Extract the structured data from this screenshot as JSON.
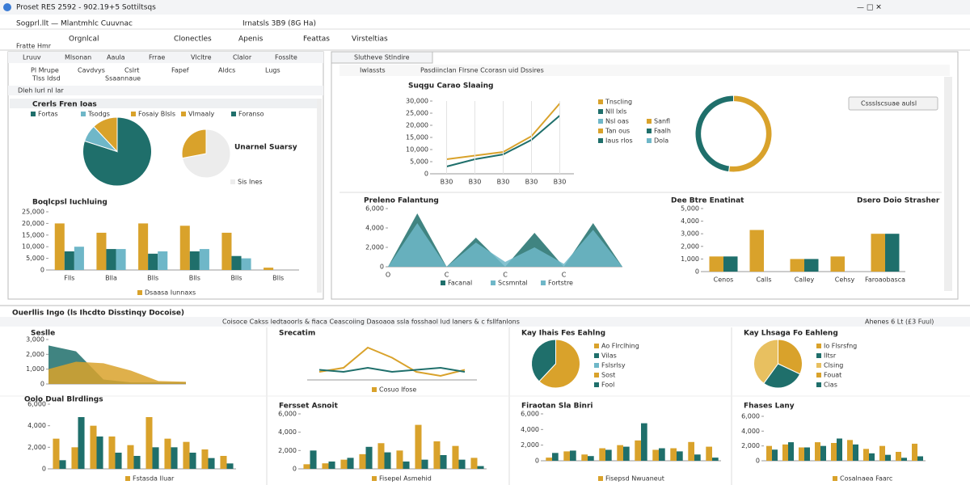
{
  "window": {
    "title": "Proset RES 2592 - 902.19+5 Sottiltsqs",
    "menu": [
      "Sogprl.llt — Mlantmhlc Cuuvnac",
      "Irnatsls 3B9 (8G Ha)"
    ]
  },
  "toolbar": {
    "small": "Fratte Hmr",
    "buttons": [
      "Orgnlcal",
      "Clonectles",
      "Apenis",
      "Feattas",
      "Virsteltias"
    ]
  },
  "left_panel": {
    "tabs": [
      "Lruuv",
      "Mlsonan",
      "Aaula",
      "Frrae",
      "Vlcltre",
      "Clalor",
      "Fosslte"
    ],
    "ribbon": [
      "Pl Mrupe",
      "Cavdvys",
      "Cslrt",
      "Fapef",
      "Aldcs",
      "Lugs"
    ],
    "ribbon_sub": [
      "Tlss Idsd",
      "Ssaannaue"
    ],
    "section": "Dleh Iurl nl lar"
  },
  "right_panel": {
    "tab": "Slutheve Stlndire",
    "bar": [
      "Iwlassts",
      "Pasdiinclan Flrsne Ccorasn uid Dssires"
    ],
    "button": "Cssslscsuae aulsl"
  },
  "bottom": {
    "title": "Ouerllis Ingo (ls Ihcdto Disstinqy Docoise)",
    "subtitle": "Coisoce Cakss ledtaoorls & fiaca Ceascoiing Dasoaoa ssla fosshaol lud laners & c fsllfanlons",
    "right": "Ahenes 6 Lt (£3 Fuul)"
  },
  "charts": [
    {
      "type": "pie",
      "title": "Crerls Fren Ioas",
      "values": [
        80,
        8,
        12
      ],
      "colors": [
        "#1f6f6b",
        "#6fb7c8",
        "#d9a22b"
      ],
      "legend": [
        "Fortas",
        "Tsodgs",
        "Fosaiy Blsls",
        "Vlmaaly",
        "Foranso"
      ]
    },
    {
      "type": "pie",
      "title": "Unarnel Suarsy",
      "values": [
        72,
        28
      ],
      "colors": [
        "#ececec",
        "#d9a22b"
      ],
      "legend": [
        "Sis Ines"
      ]
    },
    {
      "type": "bar",
      "title": "Boqlcpsl Iuchluing",
      "categories": [
        "Flls",
        "Blla",
        "Blls",
        "Blls",
        "Blls",
        "Blls"
      ],
      "ylim": [
        0,
        25000
      ],
      "yticks": [
        0,
        {
          "value": 5000,
          "label": "5,000"
        },
        {
          "value": 10000,
          "label": "10,000"
        },
        {
          "value": 15000,
          "label": "15,000"
        },
        {
          "value": 20000,
          "label": "20,000"
        },
        {
          "value": 25000,
          "label": "25,000"
        }
      ],
      "series": [
        {
          "color": "#d9a22b",
          "values": [
            20000,
            16000,
            20000,
            19000,
            16000,
            1000
          ]
        },
        {
          "color": "#1f6f6b",
          "values": [
            8000,
            9000,
            7000,
            8000,
            6000,
            0
          ]
        },
        {
          "color": "#6fb7c8",
          "values": [
            10000,
            9000,
            8000,
            9000,
            5000,
            0
          ]
        }
      ],
      "legend": [
        "Dsaasa Iunnaxs"
      ]
    },
    {
      "type": "line",
      "title": "Suqgu Carao Slaaing",
      "categories": [
        "B30",
        "B30",
        "B30",
        "B30",
        "B30"
      ],
      "ylim": [
        0,
        30000
      ],
      "yticks": [
        0,
        {
          "value": 5000,
          "label": "5,000"
        },
        {
          "value": 10000,
          "label": "10,000"
        },
        {
          "value": 15000,
          "label": "15,000"
        },
        {
          "value": 20000,
          "label": "20,000"
        },
        {
          "value": 25000,
          "label": "25,000"
        },
        {
          "value": 30000,
          "label": "30,000"
        }
      ],
      "series": [
        {
          "color": "#d9a22b",
          "values": [
            6000,
            7500,
            9000,
            15500,
            29000
          ]
        },
        {
          "color": "#1f6f6b",
          "values": [
            3000,
            6000,
            8000,
            14000,
            24000
          ]
        }
      ],
      "legend": [
        "Tnscling",
        "Nll lxls",
        "Nsl oas",
        "Tan ous",
        "Iaus rlos"
      ]
    },
    {
      "type": "donut",
      "values": [
        52,
        48
      ],
      "colors": [
        "#d9a22b",
        "#1f6f6b"
      ],
      "legend": [
        "Sanfl",
        "Faalh",
        "Dola"
      ]
    },
    {
      "type": "area",
      "title": "Preleno Falantung",
      "categories": [
        "O",
        null,
        "C",
        null,
        "C",
        null,
        "C",
        null,
        null
      ],
      "ylim": [
        0,
        6000
      ],
      "yticks": [
        0,
        {
          "value": 2000,
          "label": "2,000"
        },
        {
          "value": 4000,
          "label": "4,000"
        },
        {
          "value": 6000,
          "label": "6,000"
        }
      ],
      "series": [
        {
          "color": "#1f6f6b",
          "values": [
            0,
            5500,
            0,
            3000,
            0,
            3500,
            0,
            4500,
            0
          ]
        },
        {
          "color": "#6fb7c8",
          "values": [
            0,
            4500,
            0,
            2500,
            500,
            2000,
            300,
            3800,
            0
          ]
        }
      ],
      "legend": [
        "Facanal",
        "Scsmntal",
        "Fortstre"
      ]
    },
    {
      "type": "bar",
      "title": "Dee Btre Enatinat",
      "subtitle": "Dsero Doio Strasher",
      "categories": [
        "Cenos",
        "Calls",
        "Calley",
        "Cehsy",
        "Faroaobasca"
      ],
      "ylim": [
        0,
        5000
      ],
      "yticks": [
        0,
        {
          "value": 1000,
          "label": "1,000"
        },
        {
          "value": 2000,
          "label": "2,000"
        },
        {
          "value": 3000,
          "label": "3,000"
        },
        {
          "value": 4000,
          "label": "4,000"
        },
        {
          "value": 5000,
          "label": "5,000"
        }
      ],
      "series": [
        {
          "color": "#d9a22b",
          "values": [
            1200,
            3300,
            1000,
            1200,
            3000
          ]
        },
        {
          "color": "#1f6f6b",
          "values": [
            1200,
            0,
            1000,
            0,
            3000
          ]
        }
      ]
    },
    {
      "type": "area",
      "title": "Seslle",
      "ylim": [
        0,
        3000
      ],
      "yticks": [
        0,
        {
          "value": 1000,
          "label": "1,000"
        },
        {
          "value": 2000,
          "label": "2,000"
        },
        {
          "value": 3000,
          "label": "3,000"
        }
      ],
      "series": [
        {
          "color": "#1f6f6b",
          "values": [
            2600,
            2200,
            300,
            100,
            100,
            100
          ]
        },
        {
          "color": "#d9a22b",
          "values": [
            1000,
            1500,
            1400,
            900,
            200,
            150
          ]
        }
      ]
    },
    {
      "type": "line",
      "title": "Srecatim",
      "ylim": [
        0,
        100
      ],
      "series": [
        {
          "color": "#d9a22b",
          "values": [
            20,
            30,
            80,
            55,
            20,
            10,
            25
          ]
        },
        {
          "color": "#1f6f6b",
          "values": [
            25,
            20,
            30,
            20,
            25,
            30,
            20
          ]
        }
      ],
      "legend": [
        "Cosuo Ifose"
      ]
    },
    {
      "type": "pie",
      "title": "Kay Ihais Fes Eahlng",
      "values": [
        62,
        38
      ],
      "colors": [
        "#d9a22b",
        "#1f6f6b"
      ],
      "legend": [
        "Ao Flrclhing",
        "Vilas",
        "Fslsrlsy",
        "Sost",
        "Fool"
      ]
    },
    {
      "type": "pie",
      "title": "Kay Lhsaga Fo Eahleng",
      "values": [
        32,
        28,
        40
      ],
      "colors": [
        "#d9a22b",
        "#1f6f6b",
        "#e8c060"
      ],
      "legend": [
        "Io Flsrsfng",
        "Iltsr",
        "Clsing",
        "Fouat",
        "Cias"
      ]
    },
    {
      "type": "bar",
      "title": "Oolo Dual Blrdlings",
      "ylim": [
        0,
        6000
      ],
      "yticks": [
        0,
        {
          "value": 2000,
          "label": "2,000"
        },
        {
          "value": 4000,
          "label": "4,000"
        },
        {
          "value": 6000,
          "label": "6,000"
        }
      ],
      "series": [
        {
          "color": "#d9a22b",
          "values": [
            2800,
            2000,
            4000,
            3000,
            2200,
            4800,
            2800,
            2500,
            1800,
            1200
          ]
        },
        {
          "color": "#1f6f6b",
          "values": [
            800,
            4800,
            3000,
            1500,
            1200,
            2000,
            2000,
            1500,
            1000,
            500
          ]
        }
      ],
      "legend": [
        "Fstasda Iluar"
      ]
    },
    {
      "type": "bar",
      "title": "Fersset Asnoit",
      "ylim": [
        0,
        6000
      ],
      "yticks": [
        0,
        {
          "value": 2000,
          "label": "2,000"
        },
        {
          "value": 4000,
          "label": "4,000"
        },
        {
          "value": 6000,
          "label": "6,000"
        }
      ],
      "series": [
        {
          "color": "#d9a22b",
          "values": [
            500,
            600,
            1000,
            1600,
            2800,
            2000,
            4800,
            3000,
            2500,
            1200
          ]
        },
        {
          "color": "#1f6f6b",
          "values": [
            2000,
            800,
            1200,
            2400,
            1800,
            800,
            1000,
            1500,
            1000,
            300
          ]
        }
      ],
      "legend": [
        "Fisepel Asmehid"
      ]
    },
    {
      "type": "bar",
      "title": "Firaotan Sla Binri",
      "ylim": [
        0,
        6000
      ],
      "yticks": [
        0,
        {
          "value": 2000,
          "label": "2,000"
        },
        {
          "value": 4000,
          "label": "4,000"
        },
        {
          "value": 6000,
          "label": "6,000"
        }
      ],
      "series": [
        {
          "color": "#d9a22b",
          "values": [
            400,
            1200,
            800,
            1600,
            2000,
            2600,
            1400,
            1600,
            2400,
            1800
          ]
        },
        {
          "color": "#1f6f6b",
          "values": [
            1000,
            1300,
            600,
            1400,
            1800,
            4800,
            1600,
            1200,
            800,
            400
          ]
        }
      ],
      "legend": [
        "Fisepsd Nwuaneut"
      ]
    },
    {
      "type": "bar",
      "title": "Fhases Lany",
      "ylim": [
        0,
        6000
      ],
      "yticks": [
        0,
        {
          "value": 2000,
          "label": "2,000"
        },
        {
          "value": 4000,
          "label": "4,000"
        },
        {
          "value": 6000,
          "label": "6,000"
        }
      ],
      "series": [
        {
          "color": "#d9a22b",
          "values": [
            2000,
            2200,
            1800,
            2500,
            2400,
            2800,
            1600,
            2000,
            1200,
            2300
          ]
        },
        {
          "color": "#1f6f6b",
          "values": [
            1500,
            2500,
            1800,
            2000,
            3000,
            2200,
            1000,
            800,
            400,
            600
          ]
        }
      ],
      "legend": [
        "Cosalnaea Faarc"
      ]
    }
  ]
}
